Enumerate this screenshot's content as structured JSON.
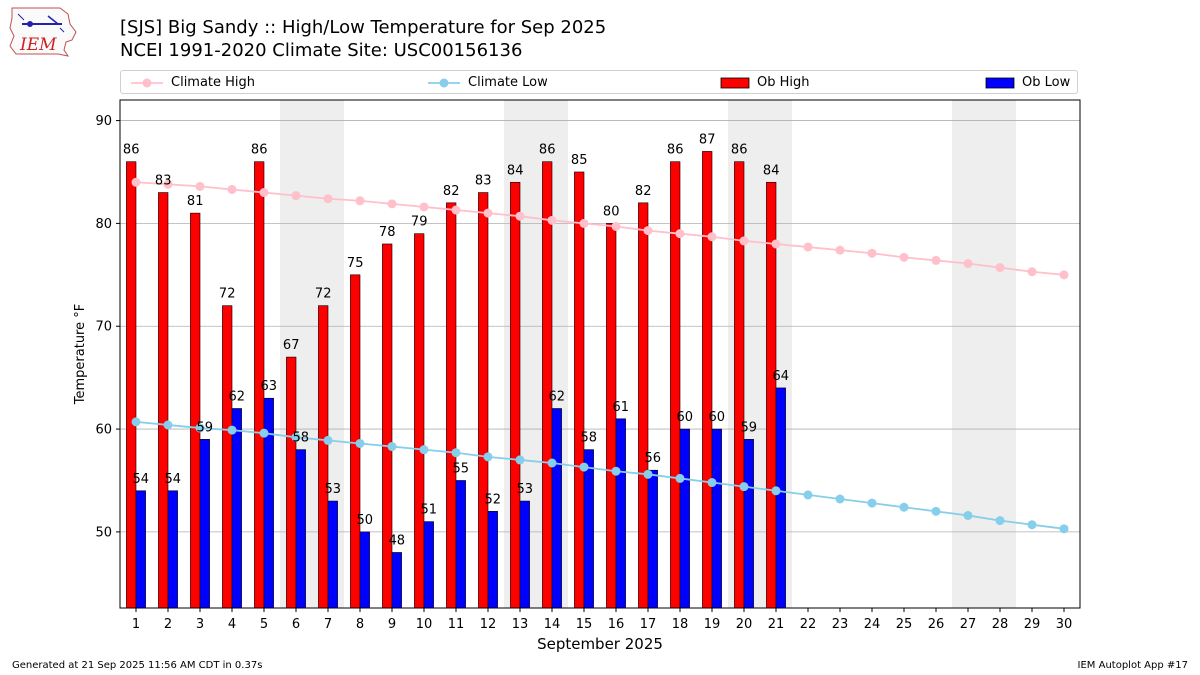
{
  "title_line1": "[SJS] Big Sandy :: High/Low Temperature for Sep 2025",
  "title_line2": "NCEI 1991-2020 Climate Site: USC00156136",
  "logo_text": "IEM",
  "footer_left": "Generated at 21 Sep 2025 11:56 AM CDT in 0.37s",
  "footer_right": "IEM Autoplot App #17",
  "colors": {
    "ob_high": "#ff0000",
    "ob_low": "#0000ff",
    "climate_high": "#ffc0cb",
    "climate_low": "#87ceeb",
    "weekend_shade": "#eeeeee",
    "grid": "#b0b0b0"
  },
  "chart_data": {
    "type": "bar",
    "xlabel": "September 2025",
    "ylabel": "Temperature °F",
    "ylim": [
      42.6,
      92
    ],
    "yticks": [
      50,
      60,
      70,
      80,
      90
    ],
    "grid": "horizontal",
    "legend_position": "top",
    "days": [
      1,
      2,
      3,
      4,
      5,
      6,
      7,
      8,
      9,
      10,
      11,
      12,
      13,
      14,
      15,
      16,
      17,
      18,
      19,
      20,
      21,
      22,
      23,
      24,
      25,
      26,
      27,
      28,
      29,
      30
    ],
    "weekend_days": [
      6,
      7,
      13,
      14,
      20,
      21,
      27,
      28
    ],
    "series": [
      {
        "name": "Climate High",
        "type": "line",
        "values": [
          84.0,
          83.8,
          83.6,
          83.3,
          83.0,
          82.7,
          82.4,
          82.2,
          81.9,
          81.6,
          81.3,
          81.0,
          80.7,
          80.3,
          80.0,
          79.7,
          79.3,
          79.0,
          78.7,
          78.3,
          78.0,
          77.7,
          77.4,
          77.1,
          76.7,
          76.4,
          76.1,
          75.7,
          75.3,
          75.0
        ]
      },
      {
        "name": "Climate Low",
        "type": "line",
        "values": [
          60.7,
          60.4,
          60.1,
          59.9,
          59.6,
          59.2,
          58.9,
          58.6,
          58.3,
          58.0,
          57.7,
          57.3,
          57.0,
          56.7,
          56.3,
          55.9,
          55.6,
          55.2,
          54.8,
          54.4,
          54.0,
          53.6,
          53.2,
          52.8,
          52.4,
          52.0,
          51.6,
          51.1,
          50.7,
          50.3
        ]
      },
      {
        "name": "Ob High",
        "type": "bar",
        "values": [
          86,
          83,
          81,
          72,
          86,
          67,
          72,
          75,
          78,
          79,
          82,
          83,
          84,
          86,
          85,
          80,
          82,
          86,
          87,
          86,
          84
        ]
      },
      {
        "name": "Ob Low",
        "type": "bar",
        "values": [
          54,
          54,
          59,
          62,
          63,
          58,
          53,
          50,
          48,
          51,
          55,
          52,
          53,
          62,
          58,
          61,
          56,
          60,
          60,
          59,
          64
        ]
      }
    ]
  }
}
